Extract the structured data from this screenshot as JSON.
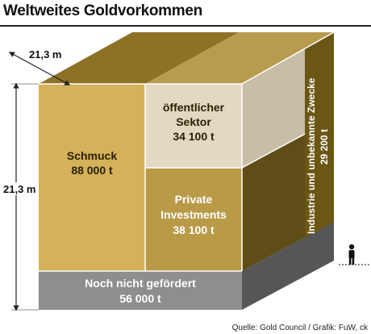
{
  "title": "Weltweites Goldvorkommen",
  "dimensions": {
    "top_edge": "21,3 m",
    "height": "21,3 m"
  },
  "segments": {
    "schmuck": {
      "label": "Schmuck",
      "value": "88 000 t"
    },
    "oeffentlich": {
      "label_line1": "öffentlicher",
      "label_line2": "Sektor",
      "value": "34 100 t"
    },
    "private": {
      "label_line1": "Private",
      "label_line2": "Investments",
      "value": "38 100 t"
    },
    "industrie": {
      "label": "Industrie und unbekannte Zwecke",
      "value": "29 200 t"
    },
    "noch_nicht": {
      "label": "Noch nicht gefördert",
      "value": "56 000 t"
    }
  },
  "source": "Quelle: Gold Council / Grafik: FuW, ck",
  "colors": {
    "schmuck": "#d3b25a",
    "oeffentlich": "#e3d9c2",
    "private": "#b99a47",
    "industrie": "#6b5614",
    "noch_nicht": "#8e8e8e",
    "top": "#8d7226",
    "side": "#5e4d16",
    "base_side": "#565656"
  },
  "icons": {
    "person": "person-icon"
  }
}
